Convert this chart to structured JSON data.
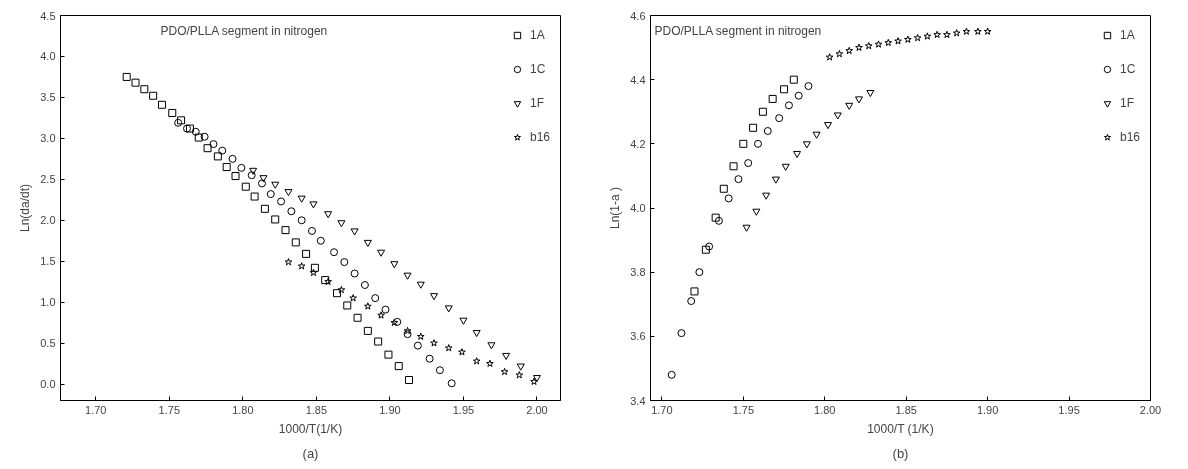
{
  "chart_data": [
    {
      "type": "scatter",
      "xlabel": "1000/T(1/K)",
      "ylabel": "Ln(da/dt)",
      "annotations": [
        "PDO/PLLA segment in nitrogen",
        "(a)"
      ],
      "legend": "top right",
      "grid": false,
      "xlim": [
        1.676,
        2.016
      ],
      "ylim": [
        -0.2,
        4.5
      ],
      "xticks": [
        {
          "value": 1.7,
          "label": "1.70"
        },
        {
          "value": 1.75,
          "label": "1.75"
        },
        {
          "value": 1.8,
          "label": "1.80"
        },
        {
          "value": 1.85,
          "label": "1.85"
        },
        {
          "value": 1.9,
          "label": "1.90"
        },
        {
          "value": 1.95,
          "label": "1.95"
        },
        {
          "value": 2.0,
          "label": "2.00"
        }
      ],
      "yticks": [
        {
          "value": 0,
          "label": "0.0"
        },
        {
          "value": 0.5,
          "label": "0.5"
        },
        {
          "value": 1,
          "label": "1.0"
        },
        {
          "value": 1.5,
          "label": "1.5"
        },
        {
          "value": 2,
          "label": "2.0"
        },
        {
          "value": 2.5,
          "label": "2.5"
        },
        {
          "value": 3,
          "label": "3.0"
        },
        {
          "value": 3.5,
          "label": "3.5"
        },
        {
          "value": 4,
          "label": "4.0"
        },
        {
          "value": 4.5,
          "label": "4.5"
        }
      ],
      "series": [
        {
          "name": "1A",
          "color": "#000000",
          "marker": "square",
          "x": [
            1.721,
            1.727,
            1.733,
            1.739,
            1.745,
            1.752,
            1.758,
            1.764,
            1.77,
            1.776,
            1.783,
            1.789,
            1.795,
            1.802,
            1.808,
            1.815,
            1.822,
            1.829,
            1.836,
            1.843,
            1.849,
            1.856,
            1.864,
            1.871,
            1.878,
            1.885,
            1.892,
            1.899,
            1.906,
            1.913
          ],
          "values": [
            3.75,
            3.68,
            3.6,
            3.52,
            3.41,
            3.31,
            3.22,
            3.12,
            3.01,
            2.88,
            2.78,
            2.65,
            2.54,
            2.41,
            2.29,
            2.14,
            2.01,
            1.88,
            1.73,
            1.59,
            1.42,
            1.27,
            1.11,
            0.96,
            0.81,
            0.65,
            0.52,
            0.36,
            0.22,
            0.05
          ]
        },
        {
          "name": "1C",
          "color": "#000000",
          "marker": "circle",
          "x": [
            1.756,
            1.762,
            1.768,
            1.774,
            1.78,
            1.786,
            1.793,
            1.799,
            1.806,
            1.813,
            1.819,
            1.826,
            1.833,
            1.84,
            1.847,
            1.853,
            1.862,
            1.869,
            1.876,
            1.883,
            1.89,
            1.897,
            1.905,
            1.912,
            1.919,
            1.927,
            1.934,
            1.942
          ],
          "values": [
            3.19,
            3.12,
            3.08,
            3.02,
            2.93,
            2.85,
            2.75,
            2.64,
            2.55,
            2.45,
            2.32,
            2.23,
            2.11,
            2.0,
            1.87,
            1.75,
            1.61,
            1.49,
            1.35,
            1.21,
            1.05,
            0.91,
            0.76,
            0.61,
            0.47,
            0.31,
            0.17,
            0.01
          ]
        },
        {
          "name": "1F",
          "color": "#000000",
          "marker": "triangle",
          "x": [
            1.807,
            1.814,
            1.822,
            1.831,
            1.84,
            1.848,
            1.858,
            1.867,
            1.876,
            1.885,
            1.894,
            1.903,
            1.912,
            1.921,
            1.93,
            1.94,
            1.95,
            1.959,
            1.969,
            1.979,
            1.989,
            2.0
          ],
          "values": [
            2.61,
            2.52,
            2.44,
            2.35,
            2.27,
            2.2,
            2.08,
            1.97,
            1.87,
            1.73,
            1.61,
            1.47,
            1.33,
            1.22,
            1.08,
            0.93,
            0.78,
            0.63,
            0.48,
            0.35,
            0.22,
            0.08
          ]
        },
        {
          "name": "b16",
          "color": "#000000",
          "marker": "star",
          "x": [
            1.831,
            1.84,
            1.848,
            1.858,
            1.867,
            1.875,
            1.885,
            1.894,
            1.903,
            1.912,
            1.921,
            1.93,
            1.94,
            1.949,
            1.959,
            1.968,
            1.978,
            1.988,
            1.998
          ],
          "values": [
            1.49,
            1.44,
            1.36,
            1.25,
            1.15,
            1.05,
            0.95,
            0.84,
            0.75,
            0.65,
            0.58,
            0.5,
            0.44,
            0.39,
            0.28,
            0.25,
            0.15,
            0.11,
            0.03
          ]
        }
      ]
    },
    {
      "type": "scatter",
      "xlabel": "1000/T (1/K)",
      "ylabel": "Ln(1-a )",
      "annotations": [
        "PDO/PLLA segment in nitrogen",
        "(b)"
      ],
      "legend": "top right",
      "grid": false,
      "xlim": [
        1.693,
        2.0
      ],
      "ylim": [
        3.4,
        4.6
      ],
      "xticks": [
        {
          "value": 1.7,
          "label": "1.70"
        },
        {
          "value": 1.75,
          "label": "1.75"
        },
        {
          "value": 1.8,
          "label": "1.80"
        },
        {
          "value": 1.85,
          "label": "1.85"
        },
        {
          "value": 1.9,
          "label": "1.90"
        },
        {
          "value": 1.95,
          "label": "1.95"
        },
        {
          "value": 2.0,
          "label": "2.00"
        }
      ],
      "yticks": [
        3.4,
        3.6,
        3.8,
        {
          "value": 4.0,
          "label": "4.0"
        },
        4.2,
        4.4,
        4.6
      ],
      "series": [
        {
          "name": "1A",
          "color": "#000000",
          "marker": "square",
          "x": [
            1.72,
            1.727,
            1.733,
            1.738,
            1.744,
            1.75,
            1.756,
            1.762,
            1.768,
            1.775,
            1.781
          ],
          "values": [
            3.74,
            3.87,
            3.97,
            4.06,
            4.13,
            4.2,
            4.25,
            4.3,
            4.34,
            4.37,
            4.4
          ]
        },
        {
          "name": "1C",
          "color": "#000000",
          "marker": "circle",
          "x": [
            1.706,
            1.712,
            1.718,
            1.723,
            1.729,
            1.735,
            1.741,
            1.747,
            1.753,
            1.759,
            1.765,
            1.772,
            1.778,
            1.784,
            1.79
          ],
          "values": [
            3.48,
            3.61,
            3.71,
            3.8,
            3.88,
            3.96,
            4.03,
            4.09,
            4.14,
            4.2,
            4.24,
            4.28,
            4.32,
            4.35,
            4.38
          ]
        },
        {
          "name": "1F",
          "color": "#000000",
          "marker": "triangle",
          "x": [
            1.752,
            1.758,
            1.764,
            1.77,
            1.776,
            1.783,
            1.789,
            1.795,
            1.802,
            1.808,
            1.815,
            1.821,
            1.828
          ],
          "values": [
            3.94,
            3.99,
            4.04,
            4.09,
            4.13,
            4.17,
            4.2,
            4.23,
            4.26,
            4.29,
            4.32,
            4.34,
            4.36
          ]
        },
        {
          "name": "b16",
          "color": "#000000",
          "marker": "star",
          "x": [
            1.803,
            1.809,
            1.815,
            1.821,
            1.827,
            1.833,
            1.839,
            1.845,
            1.851,
            1.857,
            1.863,
            1.869,
            1.875,
            1.881,
            1.887,
            1.894,
            1.9
          ],
          "values": [
            4.47,
            4.48,
            4.49,
            4.5,
            4.505,
            4.51,
            4.515,
            4.52,
            4.525,
            4.53,
            4.535,
            4.54,
            4.54,
            4.545,
            4.55,
            4.55,
            4.55
          ]
        }
      ]
    }
  ]
}
